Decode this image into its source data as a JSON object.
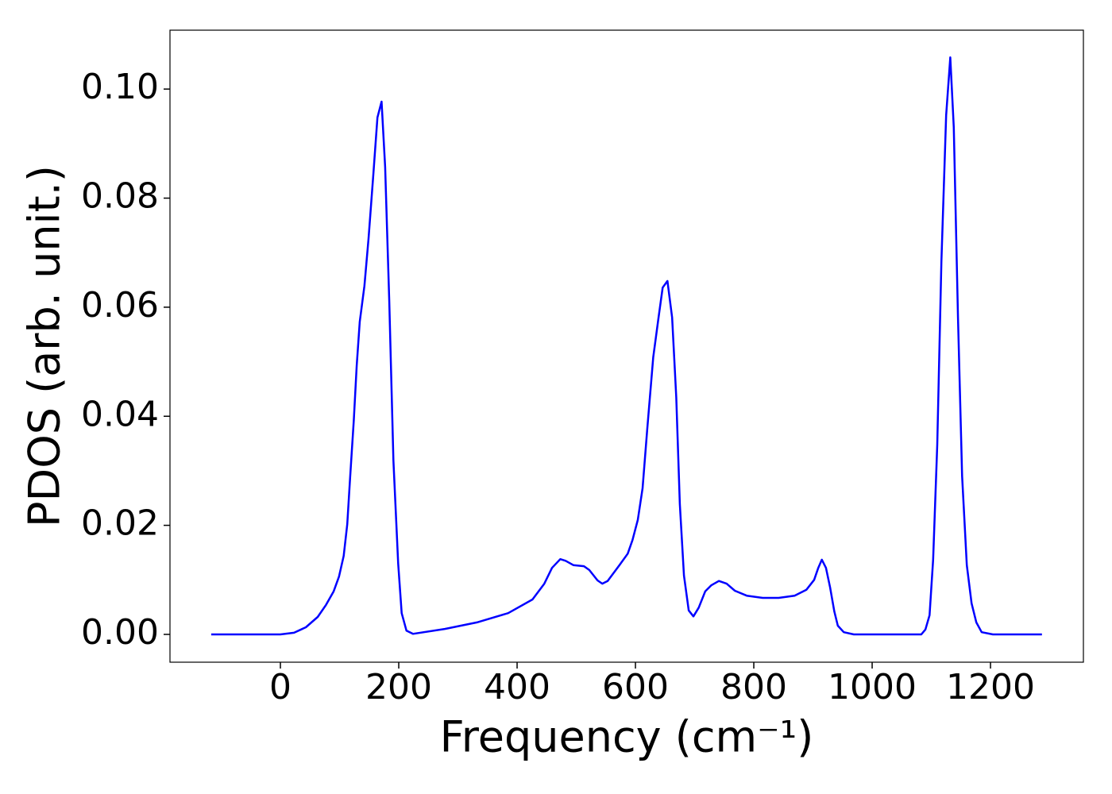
{
  "chart_data": {
    "type": "line",
    "xlabel": "Frequency (cm⁻¹)",
    "ylabel": "PDOS (arb. unit.)",
    "xlim": [
      -186.6,
      1357
    ],
    "ylim": [
      -0.0051,
      0.1108
    ],
    "xticks": [
      0,
      200,
      400,
      600,
      800,
      1000,
      1200
    ],
    "yticks": [
      {
        "value": 0,
        "label": "0.00"
      },
      {
        "value": 0.02,
        "label": "0.02"
      },
      {
        "value": 0.04,
        "label": "0.04"
      },
      {
        "value": 0.06,
        "label": "0.06"
      },
      {
        "value": 0.08,
        "label": "0.08"
      },
      {
        "value": 0.1,
        "label": "0.10"
      }
    ],
    "grid": false,
    "x": [
      -117,
      0,
      23,
      43,
      63,
      77,
      90,
      99,
      107,
      113,
      118,
      124,
      129,
      134,
      142,
      149,
      157,
      164,
      171,
      177,
      184,
      191,
      199,
      205,
      213,
      224,
      278,
      332,
      385,
      426,
      446,
      459,
      473,
      482,
      495,
      513,
      522,
      536,
      544,
      553,
      573,
      587,
      595,
      604,
      612,
      620,
      630,
      639,
      646,
      654,
      662,
      669,
      675,
      682,
      690,
      698,
      707,
      718,
      728,
      741,
      754,
      768,
      788,
      815,
      842,
      869,
      889,
      902,
      909,
      915,
      922,
      929,
      936,
      942,
      952,
      969,
      1083,
      1090,
      1097,
      1103,
      1110,
      1117,
      1125,
      1132,
      1138,
      1145,
      1152,
      1160,
      1168,
      1176,
      1185,
      1204,
      1287
    ],
    "series": [
      {
        "name": "PDOS",
        "color": "#0000ff",
        "values": [
          0,
          0,
          0.0003,
          0.0013,
          0.0032,
          0.0054,
          0.0079,
          0.0106,
          0.0144,
          0.0202,
          0.029,
          0.0392,
          0.0493,
          0.0573,
          0.0639,
          0.0726,
          0.0843,
          0.0948,
          0.0977,
          0.0857,
          0.061,
          0.0319,
          0.013,
          0.0039,
          0.0007,
          0.0001,
          0.001,
          0.0022,
          0.0039,
          0.0064,
          0.0093,
          0.0122,
          0.0138,
          0.0135,
          0.0127,
          0.0125,
          0.0118,
          0.0099,
          0.0093,
          0.0098,
          0.0127,
          0.0148,
          0.0173,
          0.021,
          0.0268,
          0.0377,
          0.0508,
          0.0581,
          0.0636,
          0.0648,
          0.0581,
          0.0435,
          0.0239,
          0.0108,
          0.0044,
          0.0033,
          0.0049,
          0.0079,
          0.009,
          0.0098,
          0.0093,
          0.008,
          0.0071,
          0.0067,
          0.0067,
          0.0071,
          0.0082,
          0.01,
          0.0122,
          0.0137,
          0.0122,
          0.0086,
          0.0042,
          0.0016,
          0.0004,
          0,
          0,
          0.0009,
          0.0035,
          0.0137,
          0.0348,
          0.0683,
          0.0952,
          0.1058,
          0.093,
          0.0581,
          0.029,
          0.0127,
          0.0057,
          0.0022,
          0.0004,
          0,
          0
        ]
      }
    ]
  }
}
